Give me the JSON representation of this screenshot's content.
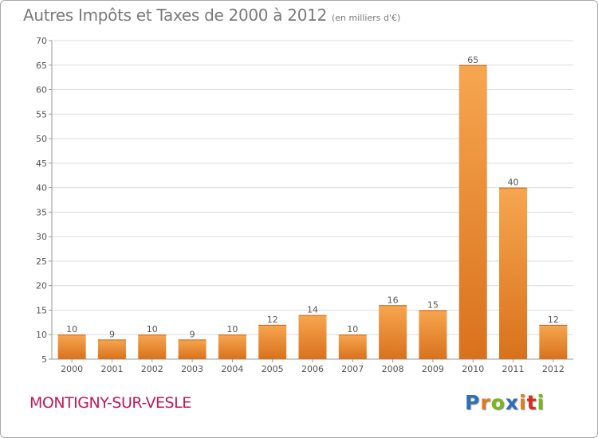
{
  "title": "Autres Impôts et Taxes de 2000 à 2012",
  "title_unit": "(en milliers d'€)",
  "commune": "MONTIGNY-SUR-VESLE",
  "logo": {
    "letters": [
      "P",
      "r",
      "o",
      "x",
      "i",
      "t",
      "i"
    ],
    "colors": [
      "#2d6fb7",
      "#e07b1b",
      "#7ab51d",
      "#2d6fb7",
      "#e07b1b",
      "#d62d20",
      "#7ab51d"
    ]
  },
  "colors": {
    "bar_light": "#f7a650",
    "bar_dark": "#d9711c",
    "grid": "#dcdcdc",
    "axis_text": "#555555"
  },
  "chart_data": {
    "type": "bar",
    "categories": [
      "2000",
      "2001",
      "2002",
      "2003",
      "2004",
      "2005",
      "2006",
      "2007",
      "2008",
      "2009",
      "2010",
      "2011",
      "2012"
    ],
    "values": [
      10,
      9,
      10,
      9,
      10,
      12,
      14,
      10,
      16,
      15,
      65,
      40,
      12
    ],
    "ylim": [
      5,
      70
    ],
    "yticks": [
      5,
      10,
      15,
      20,
      25,
      30,
      35,
      40,
      45,
      50,
      55,
      60,
      65,
      70
    ],
    "grid": true,
    "data_labels": true
  }
}
